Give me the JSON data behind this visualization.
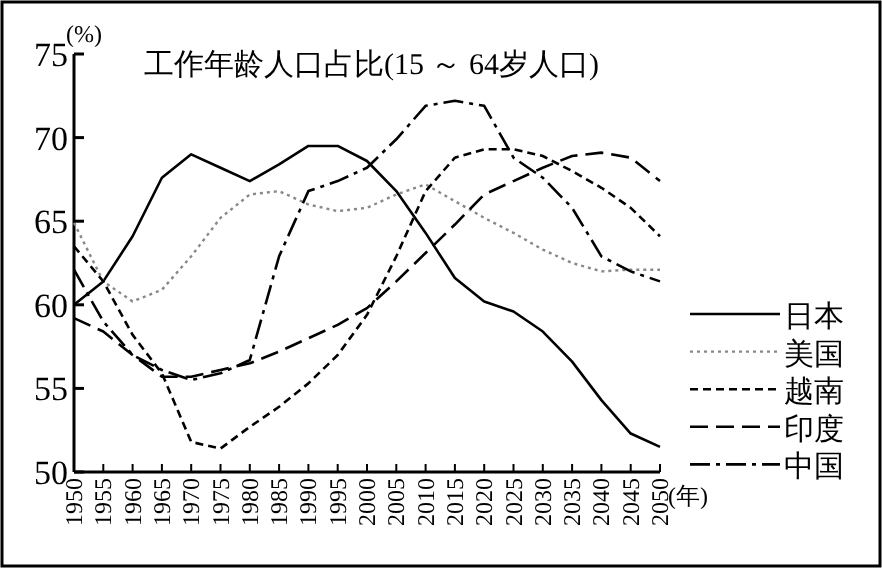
{
  "chart_data": {
    "type": "line",
    "title": "工作年龄人口占比(15 ～ 64岁人口)",
    "ylabel": "(%)",
    "xlabel": "(年)",
    "x": [
      1950,
      1955,
      1960,
      1965,
      1970,
      1975,
      1980,
      1985,
      1990,
      1995,
      2000,
      2005,
      2010,
      2015,
      2020,
      2025,
      2030,
      2035,
      2040,
      2045,
      2050
    ],
    "xlim": [
      1950,
      2050
    ],
    "xticks": [
      1950,
      1955,
      1960,
      1965,
      1970,
      1975,
      1980,
      1985,
      1990,
      1995,
      2000,
      2005,
      2010,
      2015,
      2020,
      2025,
      2030,
      2035,
      2040,
      2045,
      2050
    ],
    "ylim": [
      50,
      75
    ],
    "yticks": [
      50,
      55,
      60,
      65,
      70,
      75
    ],
    "grid": false,
    "legend": "right",
    "marker": "none",
    "series": [
      {
        "name": "日本",
        "color": "#000000",
        "line_style": "solid",
        "values": [
          60.0,
          61.4,
          64.1,
          67.6,
          69.0,
          68.2,
          67.4,
          68.4,
          69.5,
          69.5,
          68.6,
          66.8,
          64.3,
          61.6,
          60.2,
          59.6,
          58.4,
          56.6,
          54.3,
          52.3,
          51.5
        ]
      },
      {
        "name": "美国",
        "color": "#888888",
        "line_style": "dotted",
        "values": [
          64.9,
          61.4,
          60.2,
          60.9,
          62.9,
          65.2,
          66.6,
          66.8,
          66.0,
          65.6,
          65.8,
          66.6,
          67.2,
          66.2,
          65.2,
          64.3,
          63.3,
          62.5,
          62.0,
          62.1,
          62.1
        ]
      },
      {
        "name": "越南",
        "color": "#000000",
        "line_style": "dashed",
        "values": [
          63.5,
          61.4,
          58.2,
          55.9,
          51.8,
          51.4,
          52.7,
          53.9,
          55.3,
          57.0,
          59.4,
          62.9,
          66.8,
          68.8,
          69.3,
          69.3,
          68.9,
          68.0,
          67.0,
          65.8,
          64.1
        ]
      },
      {
        "name": "印度",
        "color": "#000000",
        "line_style": "dashed",
        "values": [
          59.2,
          58.4,
          57.0,
          55.7,
          55.7,
          56.1,
          56.5,
          57.2,
          58.0,
          58.8,
          59.8,
          61.4,
          63.1,
          64.8,
          66.6,
          67.4,
          68.2,
          68.9,
          69.1,
          68.8,
          67.4
        ]
      },
      {
        "name": "中国",
        "color": "#000000",
        "line_style": "dashdot",
        "values": [
          62.1,
          59.0,
          57.0,
          56.1,
          55.5,
          55.9,
          56.7,
          62.9,
          66.8,
          67.4,
          68.2,
          69.9,
          71.9,
          72.2,
          71.9,
          68.8,
          67.6,
          65.8,
          62.9,
          62.0,
          61.4
        ]
      }
    ]
  }
}
